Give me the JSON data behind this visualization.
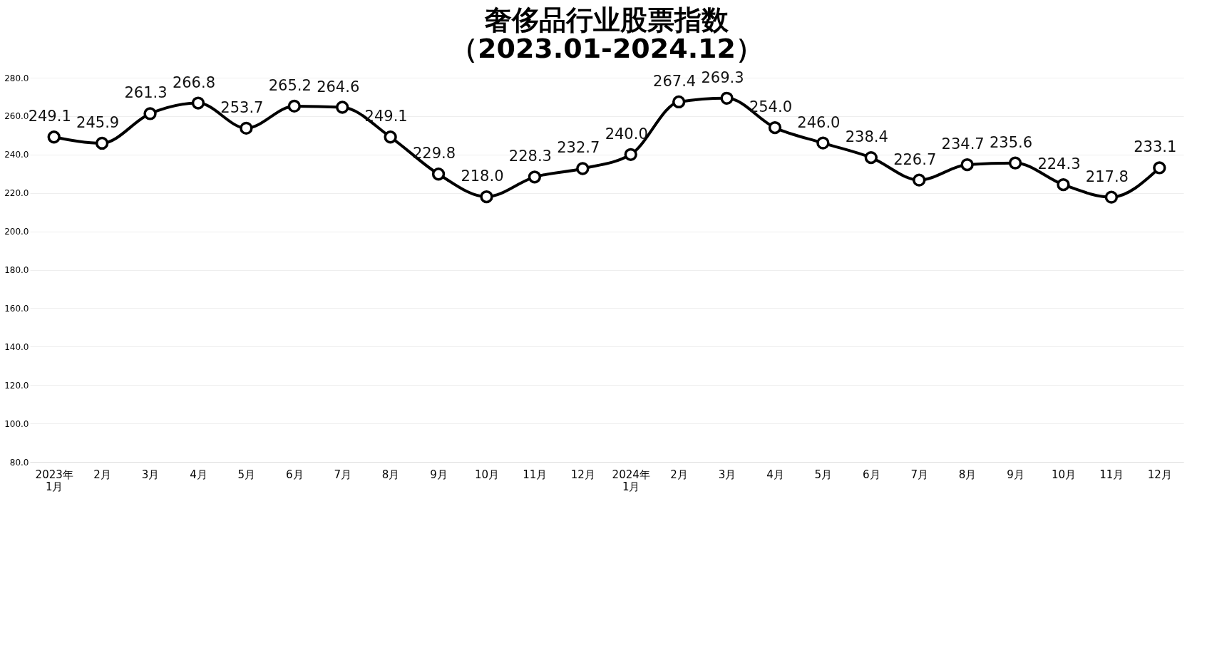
{
  "chart_data": {
    "type": "line",
    "title": [
      "奢侈品行业股票指数",
      "（2023.01-2024.12）"
    ],
    "categories": [
      "2023年\n1月",
      "2月",
      "3月",
      "4月",
      "5月",
      "6月",
      "7月",
      "8月",
      "9月",
      "10月",
      "11月",
      "12月",
      "2024年\n1月",
      "2月",
      "3月",
      "4月",
      "5月",
      "6月",
      "7月",
      "8月",
      "9月",
      "10月",
      "11月",
      "12月"
    ],
    "series": [
      {
        "color": "#000000",
        "values": [
          249.1,
          245.9,
          261.3,
          266.8,
          253.7,
          265.2,
          264.6,
          249.1,
          229.8,
          218.0,
          228.3,
          232.7,
          240.0,
          267.4,
          269.3,
          254.0,
          246.0,
          238.4,
          226.7,
          234.7,
          235.6,
          224.3,
          217.8,
          233.1
        ]
      }
    ],
    "ylim": [
      80,
      280
    ],
    "yticks": [
      {
        "value": 80,
        "label": "80.0"
      },
      {
        "value": 100,
        "label": "100.0"
      },
      {
        "value": 120,
        "label": "120.0"
      },
      {
        "value": 140,
        "label": "140.0"
      },
      {
        "value": 160,
        "label": "160.0"
      },
      {
        "value": 180,
        "label": "180.0"
      },
      {
        "value": 200,
        "label": "200.0"
      },
      {
        "value": 220,
        "label": "220.0"
      },
      {
        "value": 240,
        "label": "240.0"
      },
      {
        "value": 260,
        "label": "260.0"
      },
      {
        "value": 280,
        "label": "280.0"
      }
    ],
    "value_labels": [
      "249.1",
      "245.9",
      "261.3",
      "266.8",
      "253.7",
      "265.2",
      "264.6",
      "249.1",
      "229.8",
      "218.0",
      "228.3",
      "232.7",
      "240.0",
      "267.4",
      "269.3",
      "254.0",
      "246.0",
      "238.4",
      "226.7",
      "234.7",
      "235.6",
      "224.3",
      "217.8",
      "233.1"
    ],
    "grid": "y",
    "marker": "circle",
    "line_style": "solid"
  }
}
